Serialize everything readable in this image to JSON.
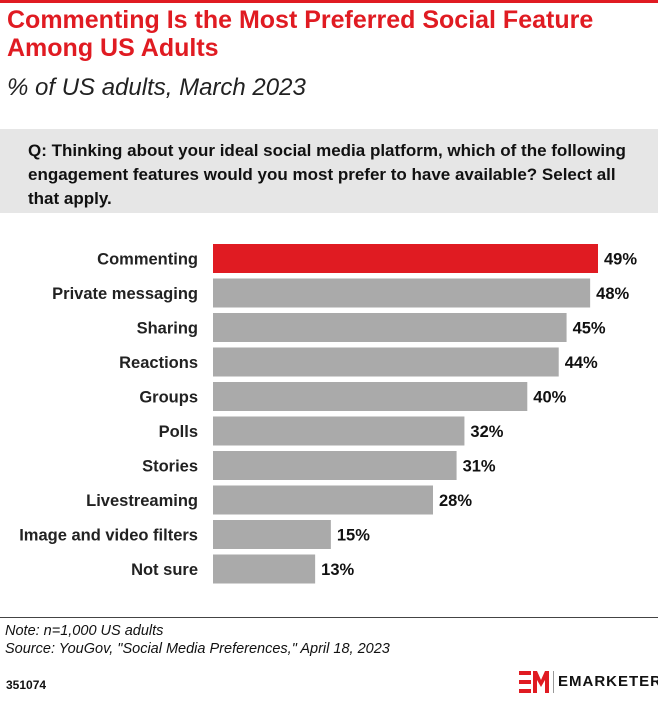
{
  "header": {
    "title": "Commenting Is the Most Preferred Social Feature Among US Adults",
    "subtitle": "% of US adults, March 2023"
  },
  "question": "Q: Thinking about your ideal social media platform, which of the following engagement features would you most prefer to have available? Select all that apply.",
  "chart_data": {
    "type": "bar",
    "orientation": "horizontal",
    "categories": [
      "Commenting",
      "Private messaging",
      "Sharing",
      "Reactions",
      "Groups",
      "Polls",
      "Stories",
      "Livestreaming",
      "Image and video filters",
      "Not sure"
    ],
    "values": [
      49,
      48,
      45,
      44,
      40,
      32,
      31,
      28,
      15,
      13
    ],
    "value_labels": [
      "49%",
      "48%",
      "45%",
      "44%",
      "40%",
      "32%",
      "31%",
      "28%",
      "15%",
      "13%"
    ],
    "highlight_index": 0,
    "colors": {
      "highlight": "#e01b22",
      "default": "#aaaaaa"
    },
    "xlim": [
      0,
      49
    ],
    "grid": false
  },
  "footer": {
    "note": "Note: n=1,000 US adults",
    "source": "Source: YouGov, \"Social Media Preferences,\" April 18, 2023",
    "chart_id": "351074",
    "brand": "EMARKETER",
    "brand_color": "#e01b22"
  }
}
